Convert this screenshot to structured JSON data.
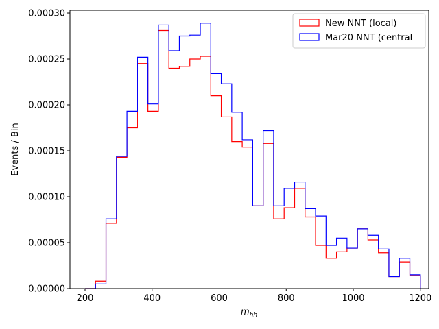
{
  "chart_data": {
    "type": "histogram-step",
    "xlabel_base": "m",
    "xlabel_sub": "hh",
    "ylabel": "Events / Bin",
    "xlim": [
      155,
      1225
    ],
    "ylim": [
      0,
      0.000303
    ],
    "xticks": [
      200,
      400,
      600,
      800,
      1000,
      1200
    ],
    "yticks": [
      0,
      5e-05,
      0.0001,
      0.00015,
      0.0002,
      0.00025,
      0.0003
    ],
    "ytick_labels": [
      "0.00000",
      "0.00005",
      "0.00010",
      "0.00015",
      "0.00020",
      "0.00025",
      "0.00030"
    ],
    "legend_position": "upper-right",
    "bin_edges": [
      200,
      231.25,
      262.5,
      293.75,
      325,
      356.25,
      387.5,
      418.75,
      450,
      481.25,
      512.5,
      543.75,
      575,
      606.25,
      637.5,
      668.75,
      700,
      731.25,
      762.5,
      793.75,
      825,
      856.25,
      887.5,
      918.75,
      950,
      981.25,
      1012.5,
      1043.75,
      1075,
      1106.25,
      1137.5,
      1168.75,
      1200
    ],
    "series": [
      {
        "name": "New NNT (local)",
        "color": "#ff0000",
        "values": [
          0,
          8e-06,
          7.1e-05,
          0.000143,
          0.000175,
          0.000245,
          0.000193,
          0.000281,
          0.00024,
          0.000242,
          0.00025,
          0.000253,
          0.00021,
          0.000187,
          0.00016,
          0.000154,
          9e-05,
          0.000158,
          7.6e-05,
          8.8e-05,
          0.000109,
          7.8e-05,
          4.7e-05,
          3.3e-05,
          4e-05,
          4.4e-05,
          6.5e-05,
          5.3e-05,
          3.9e-05,
          1.3e-05,
          2.9e-05,
          1.4e-05
        ]
      },
      {
        "name": "Mar20 NNT (central",
        "color": "#0000ff",
        "values": [
          0,
          5e-06,
          7.6e-05,
          0.000144,
          0.000193,
          0.000252,
          0.000201,
          0.000287,
          0.000259,
          0.000275,
          0.000276,
          0.000289,
          0.000234,
          0.000223,
          0.000192,
          0.000162,
          9e-05,
          0.000172,
          9e-05,
          0.000109,
          0.000116,
          8.7e-05,
          7.9e-05,
          4.7e-05,
          5.5e-05,
          4.4e-05,
          6.5e-05,
          5.8e-05,
          4.3e-05,
          1.3e-05,
          3.3e-05,
          1.5e-05
        ]
      }
    ]
  }
}
